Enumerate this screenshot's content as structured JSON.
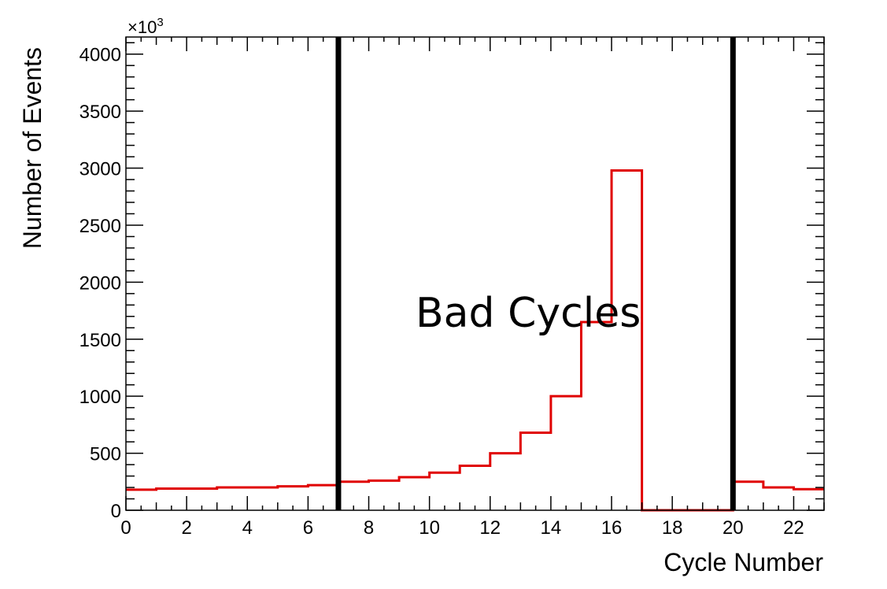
{
  "chart_data": {
    "type": "histogram",
    "xlabel": "Cycle Number",
    "ylabel": "Number of Events",
    "y_multiplier_label": "×10",
    "y_multiplier_exponent": "3",
    "xlim": [
      0,
      23
    ],
    "ylim": [
      0,
      4150
    ],
    "x_ticks": [
      0,
      2,
      4,
      6,
      8,
      10,
      12,
      14,
      16,
      18,
      20,
      22
    ],
    "y_ticks": [
      0,
      500,
      1000,
      1500,
      2000,
      2500,
      3000,
      3500,
      4000
    ],
    "bin_edges": [
      0,
      1,
      2,
      3,
      4,
      5,
      6,
      7,
      8,
      9,
      10,
      11,
      12,
      13,
      14,
      15,
      16,
      17,
      18,
      19,
      20,
      21,
      22,
      23
    ],
    "bin_values": [
      180,
      190,
      190,
      200,
      200,
      210,
      220,
      250,
      260,
      290,
      330,
      390,
      500,
      680,
      1000,
      1650,
      2980,
      0,
      0,
      0,
      250,
      200,
      185
    ],
    "line_color": "#e00000",
    "cut_lines": [
      7,
      20
    ],
    "cut_line_color": "#000000",
    "annotation": "Bad Cycles",
    "grid": false,
    "legend": "none"
  }
}
